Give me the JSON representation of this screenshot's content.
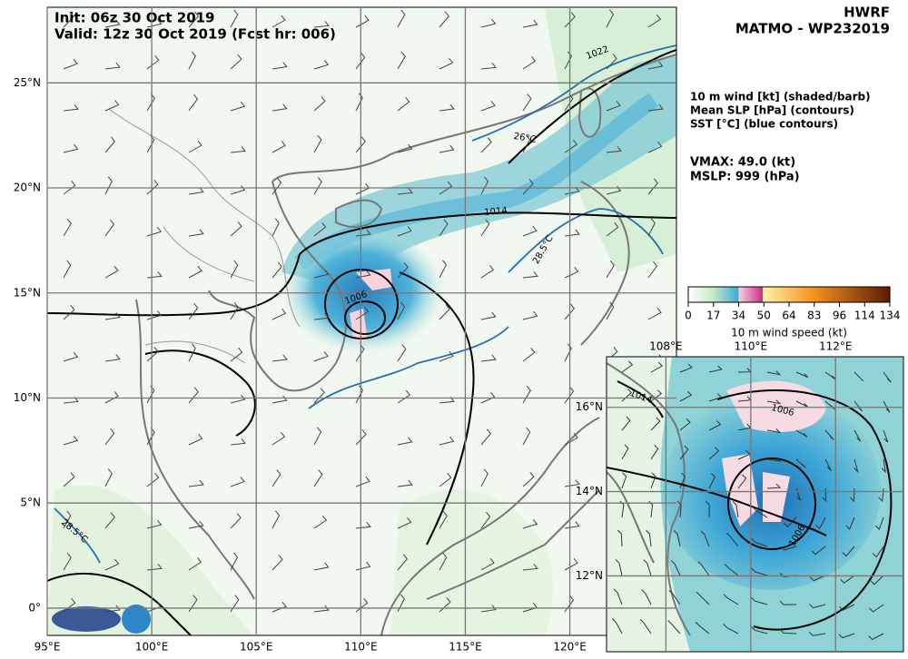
{
  "header": {
    "init": "Init: 06z 30 Oct 2019",
    "valid": "Valid: 12z 30 Oct 2019 (Fcst hr: 006)",
    "model": "HWRF",
    "storm": "MATMO - WP232019"
  },
  "legend": [
    "10 m wind [kt] (shaded/barb)",
    "Mean SLP [hPa] (contours)",
    "SST [°C] (blue contours)"
  ],
  "stats": {
    "vmax": "VMAX:  49.0 (kt)",
    "mslp": "MSLP:  999 (hPa)"
  },
  "colorbar": {
    "ticks": [
      0,
      17,
      34,
      50,
      64,
      83,
      96,
      114,
      134
    ],
    "label": "10 m wind speed (kt)"
  },
  "main_map": {
    "xlim": [
      95,
      125.1
    ],
    "ylim": [
      -1.3,
      28.6
    ],
    "xticks": [
      {
        "value": 95,
        "label": "95°E"
      },
      {
        "value": 100,
        "label": "100°E"
      },
      {
        "value": 105,
        "label": "105°E"
      },
      {
        "value": 110,
        "label": "110°E"
      },
      {
        "value": 115,
        "label": "115°E"
      },
      {
        "value": 120,
        "label": "120°E"
      }
    ],
    "yticks": [
      {
        "value": 0,
        "label": "0°"
      },
      {
        "value": 5,
        "label": "5°N"
      },
      {
        "value": 10,
        "label": "10°N"
      },
      {
        "value": 15,
        "label": "15°N"
      },
      {
        "value": 20,
        "label": "20°N"
      },
      {
        "value": 25,
        "label": "25°N"
      }
    ],
    "contour_labels": [
      "1022",
      "1014",
      "1006",
      "28.5°C",
      "26°C",
      "28.5°C"
    ]
  },
  "inset_map": {
    "xlim": [
      106.6,
      113.6
    ],
    "ylim": [
      10.2,
      17.2
    ],
    "xticks": [
      {
        "value": 108,
        "label": "108°E"
      },
      {
        "value": 110,
        "label": "110°E"
      },
      {
        "value": 112,
        "label": "112°E"
      }
    ],
    "yticks": [
      {
        "value": 12,
        "label": "12°N"
      },
      {
        "value": 14,
        "label": "14°N"
      },
      {
        "value": 16,
        "label": "16°N"
      }
    ],
    "contour_labels": [
      "1006",
      "1006",
      "1014"
    ]
  }
}
